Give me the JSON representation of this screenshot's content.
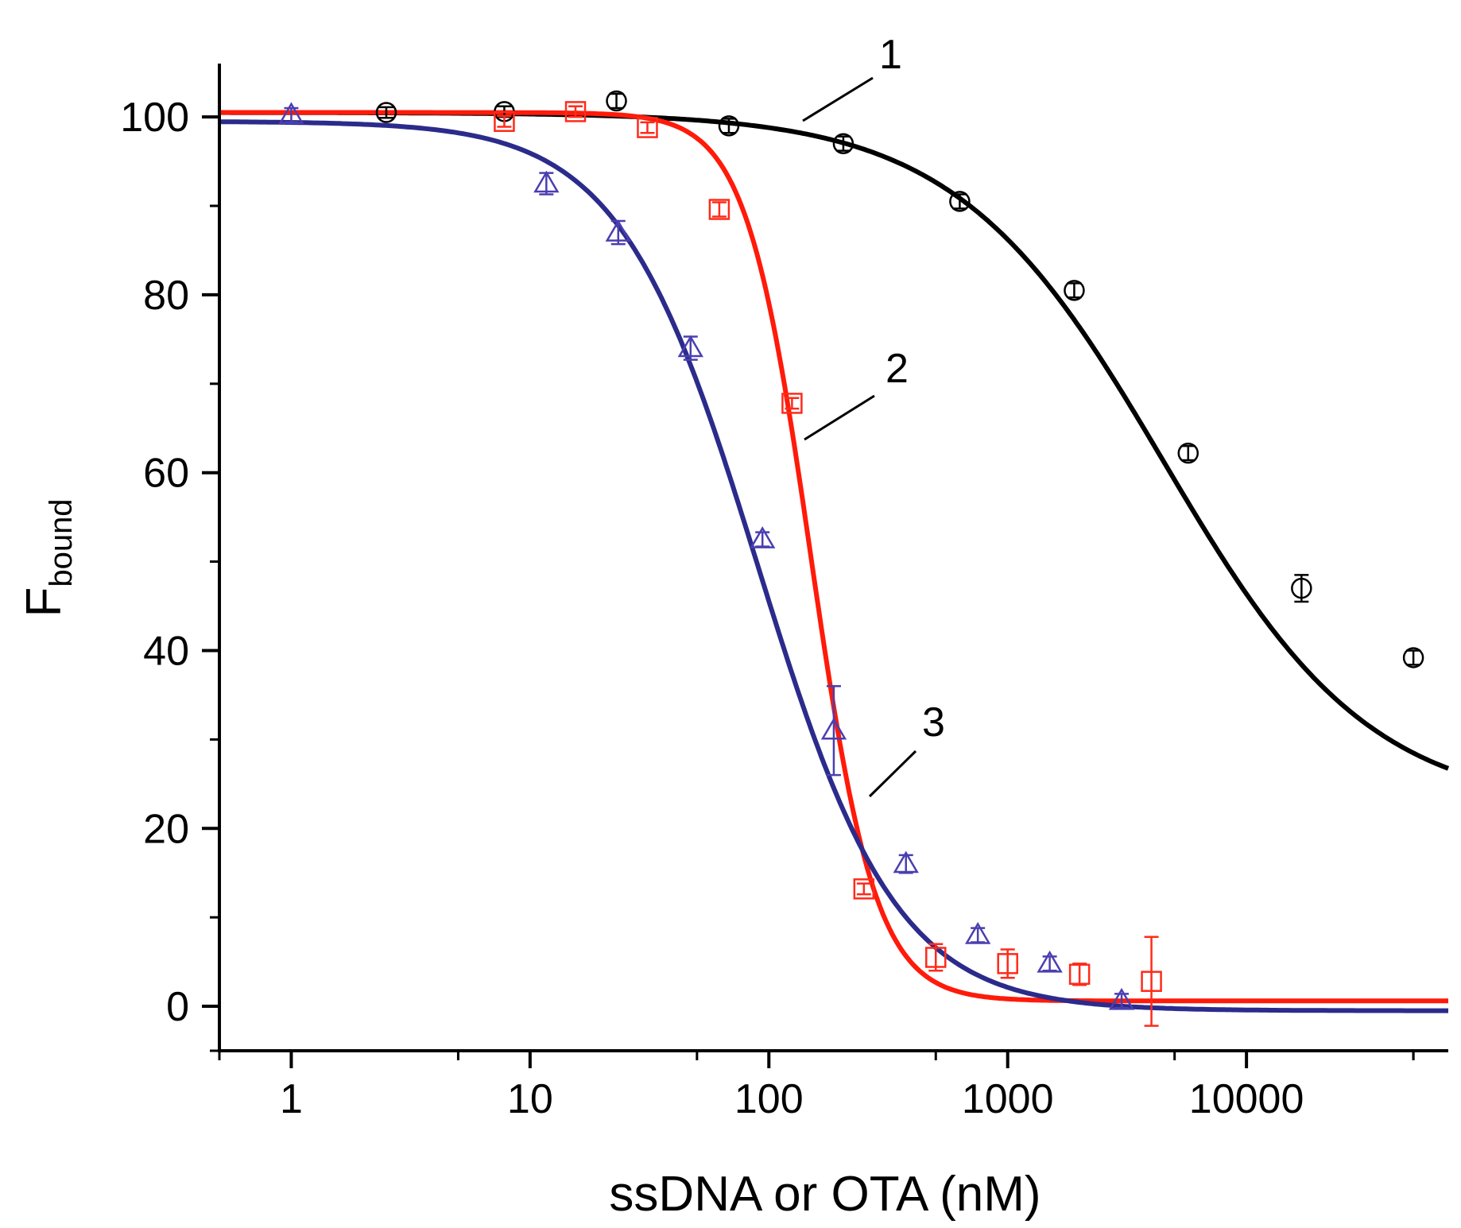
{
  "chart_data": {
    "type": "scatter",
    "title": "",
    "xlabel": "ssDNA or OTA (nM)",
    "ylabel_main": "F",
    "ylabel_sub": "bound",
    "xscale": "log",
    "xlim": [
      0.5,
      70000
    ],
    "ylim": [
      -5,
      106
    ],
    "xticks": [
      1,
      10,
      100,
      1000,
      10000
    ],
    "xtick_labels": [
      "1",
      "10",
      "100",
      "1000",
      "10000"
    ],
    "yticks": [
      0,
      20,
      40,
      60,
      80,
      100
    ],
    "ytick_labels": [
      "0",
      "20",
      "40",
      "60",
      "80",
      "100"
    ],
    "grid": false,
    "legend": "none",
    "series": [
      {
        "name": "1",
        "label": "1",
        "marker": "circle",
        "color": "#000000",
        "points": [
          {
            "x": 2.5,
            "y": 100.5,
            "err": 0.6
          },
          {
            "x": 7.8,
            "y": 100.6,
            "err": 0.6
          },
          {
            "x": 23,
            "y": 101.8,
            "err": 0.8
          },
          {
            "x": 68,
            "y": 99.0,
            "err": 0.8
          },
          {
            "x": 205,
            "y": 97.0,
            "err": 0.8
          },
          {
            "x": 630,
            "y": 90.5,
            "err": 0.8
          },
          {
            "x": 1900,
            "y": 80.5,
            "err": 0.8
          },
          {
            "x": 5700,
            "y": 62.2,
            "err": 0.8
          },
          {
            "x": 17000,
            "y": 47.0,
            "err": 1.5
          },
          {
            "x": 50000,
            "y": 39.2,
            "err": 0.8
          }
        ],
        "fit": {
          "top": 100.5,
          "bottom": 22,
          "x50": 4500,
          "hill": 1.0
        }
      },
      {
        "name": "2",
        "label": "2",
        "marker": "square",
        "color": "#ff2a1a",
        "points": [
          {
            "x": 7.8,
            "y": 99.5,
            "err": 0.6
          },
          {
            "x": 15.5,
            "y": 100.6,
            "err": 0.6
          },
          {
            "x": 31,
            "y": 98.8,
            "err": 0.6
          },
          {
            "x": 62,
            "y": 89.6,
            "err": 0.8
          },
          {
            "x": 125,
            "y": 67.8,
            "err": 0.6
          },
          {
            "x": 250,
            "y": 13.2,
            "err": 0.6
          },
          {
            "x": 500,
            "y": 5.5,
            "err": 1.5
          },
          {
            "x": 1000,
            "y": 4.8,
            "err": 1.6
          },
          {
            "x": 2000,
            "y": 3.6,
            "err": 1.2
          },
          {
            "x": 4000,
            "y": 2.8,
            "err": 5.0
          }
        ],
        "fit": {
          "top": 100.5,
          "bottom": 0.6,
          "x50": 150,
          "hill": 3.2
        }
      },
      {
        "name": "3",
        "label": "3",
        "marker": "triangle",
        "color": "#2e2e8a",
        "points": [
          {
            "x": 1,
            "y": 100.2,
            "err": 0.8
          },
          {
            "x": 11.7,
            "y": 92.5,
            "err": 1.2
          },
          {
            "x": 23.4,
            "y": 87.0,
            "err": 1.3
          },
          {
            "x": 47,
            "y": 74.0,
            "err": 1.3
          },
          {
            "x": 94,
            "y": 52.5,
            "err": 0.8
          },
          {
            "x": 187,
            "y": 31.0,
            "err": 5.0
          },
          {
            "x": 375,
            "y": 16.0,
            "err": 1.0
          },
          {
            "x": 750,
            "y": 8.0,
            "err": 0.8
          },
          {
            "x": 1500,
            "y": 4.8,
            "err": 0.8
          },
          {
            "x": 3000,
            "y": 0.6,
            "err": 0.8
          }
        ],
        "fit": {
          "top": 99.5,
          "bottom": -0.5,
          "x50": 90,
          "hill": 1.5
        }
      }
    ],
    "annotations": [
      {
        "text": "1",
        "series": "1"
      },
      {
        "text": "2",
        "series": "2"
      },
      {
        "text": "3",
        "series": "3"
      }
    ]
  }
}
